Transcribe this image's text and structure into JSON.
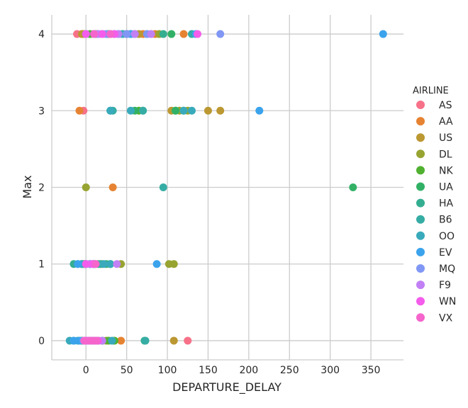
{
  "chart_data": {
    "type": "scatter",
    "xlabel": "DEPARTURE_DELAY",
    "ylabel": "Max",
    "xlim": [
      -42,
      390
    ],
    "ylim": [
      -0.25,
      4.25
    ],
    "xticks": [
      0,
      50,
      100,
      150,
      200,
      250,
      300,
      350
    ],
    "yticks": [
      0,
      1,
      2,
      3,
      4
    ],
    "grid": true,
    "legend": {
      "title": "AIRLINE",
      "placement": "right"
    },
    "series": [
      {
        "name": "AS",
        "color": "#f77189",
        "points": [
          [
            -11,
            4
          ],
          [
            -5,
            4
          ],
          [
            10,
            4
          ],
          [
            25,
            4
          ],
          [
            50,
            4
          ],
          [
            -3,
            3
          ],
          [
            -2,
            1
          ],
          [
            5,
            1
          ],
          [
            12,
            1
          ],
          [
            125,
            0
          ],
          [
            -5,
            0
          ],
          [
            0,
            0
          ],
          [
            5,
            0
          ],
          [
            15,
            0
          ]
        ]
      },
      {
        "name": "AA",
        "color": "#e68332",
        "points": [
          [
            -3,
            4
          ],
          [
            12,
            4
          ],
          [
            30,
            4
          ],
          [
            55,
            4
          ],
          [
            70,
            4
          ],
          [
            85,
            4
          ],
          [
            120,
            4
          ],
          [
            -8,
            3
          ],
          [
            -1,
            0
          ],
          [
            5,
            0
          ],
          [
            10,
            0
          ],
          [
            20,
            0
          ],
          [
            43,
            0
          ],
          [
            33,
            2
          ]
        ]
      },
      {
        "name": "US",
        "color": "#bb9832",
        "points": [
          [
            -5,
            4
          ],
          [
            20,
            4
          ],
          [
            40,
            4
          ],
          [
            65,
            4
          ],
          [
            80,
            4
          ],
          [
            105,
            3
          ],
          [
            150,
            3
          ],
          [
            165,
            3
          ],
          [
            108,
            0
          ],
          [
            5,
            0
          ],
          [
            10,
            0
          ]
        ]
      },
      {
        "name": "DL",
        "color": "#97a431",
        "points": [
          [
            0,
            4
          ],
          [
            15,
            4
          ],
          [
            35,
            4
          ],
          [
            60,
            4
          ],
          [
            90,
            4
          ],
          [
            115,
            3
          ],
          [
            125,
            3
          ],
          [
            0,
            2
          ],
          [
            -5,
            1
          ],
          [
            10,
            1
          ],
          [
            20,
            1
          ],
          [
            43,
            1
          ],
          [
            102,
            1
          ],
          [
            108,
            1
          ],
          [
            0,
            0
          ],
          [
            15,
            0
          ],
          [
            25,
            0
          ]
        ]
      },
      {
        "name": "NK",
        "color": "#50b131",
        "points": [
          [
            5,
            4
          ],
          [
            28,
            4
          ],
          [
            45,
            4
          ],
          [
            65,
            3
          ],
          [
            110,
            3
          ],
          [
            120,
            3
          ],
          [
            -2,
            1
          ],
          [
            8,
            1
          ],
          [
            18,
            1
          ],
          [
            30,
            1
          ],
          [
            35,
            0
          ],
          [
            28,
            0
          ],
          [
            20,
            0
          ]
        ]
      },
      {
        "name": "UA",
        "color": "#32b166",
        "points": [
          [
            10,
            4
          ],
          [
            30,
            4
          ],
          [
            50,
            4
          ],
          [
            105,
            4
          ],
          [
            60,
            3
          ],
          [
            110,
            3
          ],
          [
            328,
            2
          ],
          [
            0,
            1
          ],
          [
            15,
            1
          ],
          [
            25,
            1
          ],
          [
            -5,
            0
          ],
          [
            5,
            0
          ],
          [
            15,
            0
          ]
        ]
      },
      {
        "name": "HA",
        "color": "#34ae91",
        "points": [
          [
            40,
            4
          ],
          [
            55,
            4
          ],
          [
            95,
            4
          ],
          [
            70,
            3
          ],
          [
            -15,
            1
          ],
          [
            -5,
            1
          ],
          [
            5,
            1
          ],
          [
            72,
            0
          ]
        ]
      },
      {
        "name": "B6",
        "color": "#36ada4",
        "points": [
          [
            0,
            4
          ],
          [
            15,
            4
          ],
          [
            40,
            4
          ],
          [
            60,
            4
          ],
          [
            130,
            4
          ],
          [
            30,
            3
          ],
          [
            33,
            3
          ],
          [
            70,
            3
          ],
          [
            95,
            2
          ],
          [
            -10,
            1
          ],
          [
            5,
            1
          ],
          [
            18,
            1
          ],
          [
            30,
            1
          ],
          [
            73,
            0
          ],
          [
            -3,
            0
          ],
          [
            10,
            0
          ]
        ]
      },
      {
        "name": "OO",
        "color": "#38aabb",
        "points": [
          [
            0,
            4
          ],
          [
            20,
            4
          ],
          [
            45,
            4
          ],
          [
            75,
            4
          ],
          [
            30,
            3
          ],
          [
            55,
            3
          ],
          [
            120,
            3
          ],
          [
            130,
            3
          ],
          [
            -5,
            1
          ],
          [
            5,
            1
          ],
          [
            22,
            1
          ],
          [
            30,
            1
          ],
          [
            -20,
            0
          ],
          [
            -15,
            0
          ],
          [
            -10,
            0
          ],
          [
            5,
            0
          ],
          [
            20,
            0
          ],
          [
            32,
            0
          ]
        ]
      },
      {
        "name": "EV",
        "color": "#3ba3ec",
        "points": [
          [
            10,
            4
          ],
          [
            35,
            4
          ],
          [
            55,
            4
          ],
          [
            135,
            4
          ],
          [
            365,
            4
          ],
          [
            213,
            3
          ],
          [
            87,
            1
          ],
          [
            -10,
            1
          ],
          [
            0,
            1
          ],
          [
            10,
            1
          ],
          [
            -15,
            0
          ],
          [
            -8,
            0
          ],
          [
            2,
            0
          ],
          [
            12,
            0
          ]
        ]
      },
      {
        "name": "MQ",
        "color": "#8197f4",
        "points": [
          [
            25,
            4
          ],
          [
            50,
            4
          ],
          [
            75,
            4
          ],
          [
            165,
            4
          ],
          [
            0,
            1
          ],
          [
            10,
            1
          ],
          [
            -3,
            0
          ],
          [
            8,
            0
          ]
        ]
      },
      {
        "name": "F9",
        "color": "#c180f4",
        "points": [
          [
            15,
            4
          ],
          [
            40,
            4
          ],
          [
            60,
            4
          ],
          [
            80,
            4
          ],
          [
            38,
            1
          ],
          [
            5,
            1
          ],
          [
            20,
            0
          ],
          [
            2,
            0
          ]
        ]
      },
      {
        "name": "WN",
        "color": "#f45deb",
        "points": [
          [
            0,
            4
          ],
          [
            20,
            4
          ],
          [
            35,
            4
          ],
          [
            137,
            4
          ],
          [
            8,
            1
          ],
          [
            0,
            1
          ],
          [
            0,
            0
          ],
          [
            5,
            0
          ],
          [
            10,
            0
          ],
          [
            15,
            0
          ]
        ]
      },
      {
        "name": "VX",
        "color": "#f565cc",
        "points": [
          [
            30,
            4
          ],
          [
            10,
            4
          ],
          [
            12,
            1
          ],
          [
            -2,
            0
          ],
          [
            4,
            0
          ],
          [
            9,
            0
          ],
          [
            13,
            0
          ]
        ]
      }
    ]
  }
}
